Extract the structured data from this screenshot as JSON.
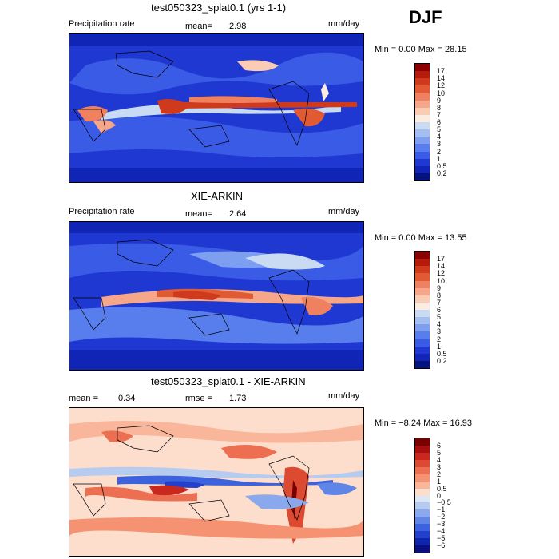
{
  "season": "DJF",
  "panels": [
    {
      "title": "test050323_splat0.1 (yrs 1-1)",
      "left_label": "Precipitation rate",
      "mean_label": "mean=",
      "mean_value": "2.98",
      "units": "mm/day",
      "minmax": "Min =    0.00 Max =  28.15"
    },
    {
      "title": "XIE-ARKIN",
      "left_label": "Precipitation rate",
      "mean_label": "mean=",
      "mean_value": "2.64",
      "units": "mm/day",
      "minmax": "Min =    0.00 Max =  13.55"
    },
    {
      "title": "test050323_splat0.1 - XIE-ARKIN",
      "mean_label": "mean =",
      "mean_value": "0.34",
      "rmse_label": "rmse =",
      "rmse_value": "1.73",
      "units": "mm/day",
      "minmax": "Min = −8.24 Max =   16.93"
    }
  ],
  "chart_data": [
    {
      "type": "heatmap",
      "title": "test050323_splat0.1 (yrs 1-1)",
      "variable": "Precipitation rate",
      "units": "mm/day",
      "mean": 2.98,
      "min": 0.0,
      "max": 28.15,
      "colorbar_levels": [
        "17",
        "14",
        "12",
        "10",
        "9",
        "8",
        "7",
        "6",
        "5",
        "4",
        "3",
        "2",
        "1",
        "0.5",
        "0.2"
      ],
      "colorbar_colors": [
        "#8b0000",
        "#b41b0b",
        "#cf3a1c",
        "#e05a34",
        "#ef8060",
        "#f6a689",
        "#fbccb4",
        "#fbece1",
        "#c9dbf3",
        "#a3bff0",
        "#7e9ff0",
        "#587ded",
        "#3a5be6",
        "#2038d2",
        "#1025b5",
        "#05137d"
      ]
    },
    {
      "type": "heatmap",
      "title": "XIE-ARKIN",
      "variable": "Precipitation rate",
      "units": "mm/day",
      "mean": 2.64,
      "min": 0.0,
      "max": 13.55,
      "colorbar_levels": [
        "17",
        "14",
        "12",
        "10",
        "9",
        "8",
        "7",
        "6",
        "5",
        "4",
        "3",
        "2",
        "1",
        "0.5",
        "0.2"
      ],
      "colorbar_colors": [
        "#8b0000",
        "#b41b0b",
        "#cf3a1c",
        "#e05a34",
        "#ef8060",
        "#f6a689",
        "#fbccb4",
        "#fbece1",
        "#c9dbf3",
        "#a3bff0",
        "#7e9ff0",
        "#587ded",
        "#3a5be6",
        "#2038d2",
        "#1025b5",
        "#05137d"
      ]
    },
    {
      "type": "heatmap",
      "title": "test050323_splat0.1 - XIE-ARKIN",
      "units": "mm/day",
      "mean": 0.34,
      "rmse": 1.73,
      "min": -8.24,
      "max": 16.93,
      "colorbar_levels": [
        "6",
        "5",
        "4",
        "3",
        "2",
        "1",
        "0.5",
        "0",
        "−0.5",
        "−1",
        "−2",
        "−3",
        "−4",
        "−5",
        "−6"
      ],
      "colorbar_colors": [
        "#7a0000",
        "#a50f0f",
        "#c8281e",
        "#dd4a32",
        "#ec6f52",
        "#f49272",
        "#f9b69a",
        "#fdddcc",
        "#dbe6f6",
        "#b6cbf0",
        "#8aa9ec",
        "#5f85e6",
        "#3c62de",
        "#2240cc",
        "#0f26aa",
        "#0a0f80"
      ]
    }
  ]
}
